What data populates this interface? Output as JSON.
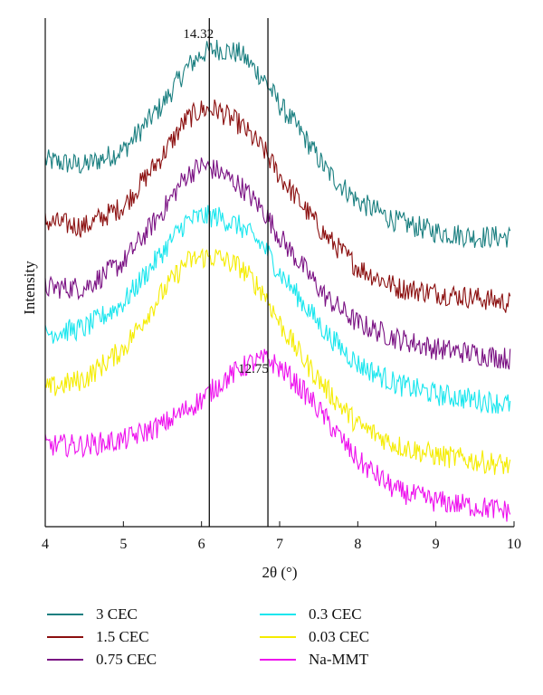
{
  "chart_data": {
    "type": "line",
    "title": "",
    "xlabel": "2θ (°)",
    "ylabel": "Intensity",
    "xlim": [
      4,
      10
    ],
    "xticks": [
      "4",
      "5",
      "6",
      "7",
      "8",
      "9",
      "10"
    ],
    "yticks_shown": false,
    "grid": false,
    "legend_placement": "below",
    "annotations": [
      {
        "text": "14.32",
        "x": 6.1,
        "vline": true
      },
      {
        "text": "12.75",
        "x": 6.85,
        "vline": true
      }
    ],
    "series": [
      {
        "name": "3 CEC",
        "color": "#1a7f80",
        "points": [
          [
            4.0,
            0.72
          ],
          [
            4.5,
            0.71
          ],
          [
            5.0,
            0.74
          ],
          [
            5.5,
            0.83
          ],
          [
            5.8,
            0.9
          ],
          [
            6.0,
            0.93
          ],
          [
            6.2,
            0.94
          ],
          [
            6.5,
            0.93
          ],
          [
            6.8,
            0.88
          ],
          [
            7.0,
            0.83
          ],
          [
            7.3,
            0.77
          ],
          [
            7.6,
            0.7
          ],
          [
            8.0,
            0.64
          ],
          [
            8.5,
            0.6
          ],
          [
            9.0,
            0.58
          ],
          [
            9.5,
            0.57
          ],
          [
            9.95,
            0.57
          ]
        ]
      },
      {
        "name": "1.5 CEC",
        "color": "#8b0f0f",
        "points": [
          [
            4.0,
            0.6
          ],
          [
            4.5,
            0.59
          ],
          [
            5.0,
            0.63
          ],
          [
            5.5,
            0.73
          ],
          [
            5.8,
            0.8
          ],
          [
            6.0,
            0.82
          ],
          [
            6.2,
            0.82
          ],
          [
            6.5,
            0.79
          ],
          [
            6.8,
            0.74
          ],
          [
            7.0,
            0.69
          ],
          [
            7.3,
            0.63
          ],
          [
            7.6,
            0.57
          ],
          [
            8.0,
            0.51
          ],
          [
            8.5,
            0.47
          ],
          [
            9.0,
            0.46
          ],
          [
            9.5,
            0.45
          ],
          [
            9.95,
            0.44
          ]
        ]
      },
      {
        "name": "0.75 CEC",
        "color": "#7a1183",
        "points": [
          [
            4.0,
            0.47
          ],
          [
            4.5,
            0.47
          ],
          [
            5.0,
            0.52
          ],
          [
            5.5,
            0.62
          ],
          [
            5.8,
            0.69
          ],
          [
            6.0,
            0.71
          ],
          [
            6.2,
            0.7
          ],
          [
            6.5,
            0.67
          ],
          [
            6.8,
            0.62
          ],
          [
            7.0,
            0.57
          ],
          [
            7.3,
            0.51
          ],
          [
            7.6,
            0.45
          ],
          [
            8.0,
            0.4
          ],
          [
            8.5,
            0.37
          ],
          [
            9.0,
            0.35
          ],
          [
            9.5,
            0.34
          ],
          [
            9.95,
            0.33
          ]
        ]
      },
      {
        "name": "0.3 CEC",
        "color": "#19e6ee",
        "points": [
          [
            4.0,
            0.38
          ],
          [
            4.5,
            0.39
          ],
          [
            5.0,
            0.44
          ],
          [
            5.5,
            0.54
          ],
          [
            5.8,
            0.6
          ],
          [
            6.0,
            0.61
          ],
          [
            6.2,
            0.61
          ],
          [
            6.5,
            0.59
          ],
          [
            6.8,
            0.55
          ],
          [
            7.0,
            0.5
          ],
          [
            7.3,
            0.44
          ],
          [
            7.6,
            0.38
          ],
          [
            8.0,
            0.32
          ],
          [
            8.5,
            0.28
          ],
          [
            9.0,
            0.26
          ],
          [
            9.5,
            0.25
          ],
          [
            9.95,
            0.24
          ]
        ]
      },
      {
        "name": "0.03 CEC",
        "color": "#f5ec00",
        "points": [
          [
            4.0,
            0.27
          ],
          [
            4.5,
            0.29
          ],
          [
            5.0,
            0.35
          ],
          [
            5.5,
            0.46
          ],
          [
            5.8,
            0.52
          ],
          [
            6.0,
            0.53
          ],
          [
            6.2,
            0.53
          ],
          [
            6.5,
            0.51
          ],
          [
            6.8,
            0.46
          ],
          [
            7.0,
            0.4
          ],
          [
            7.3,
            0.33
          ],
          [
            7.6,
            0.27
          ],
          [
            8.0,
            0.2
          ],
          [
            8.5,
            0.16
          ],
          [
            9.0,
            0.14
          ],
          [
            9.5,
            0.13
          ],
          [
            9.95,
            0.12
          ]
        ]
      },
      {
        "name": "Na-MMT",
        "color": "#ee10ee",
        "points": [
          [
            4.0,
            0.16
          ],
          [
            4.5,
            0.16
          ],
          [
            5.0,
            0.17
          ],
          [
            5.5,
            0.2
          ],
          [
            6.0,
            0.25
          ],
          [
            6.3,
            0.29
          ],
          [
            6.6,
            0.32
          ],
          [
            6.85,
            0.33
          ],
          [
            7.1,
            0.3
          ],
          [
            7.4,
            0.25
          ],
          [
            7.7,
            0.19
          ],
          [
            8.0,
            0.13
          ],
          [
            8.5,
            0.07
          ],
          [
            9.0,
            0.05
          ],
          [
            9.5,
            0.04
          ],
          [
            9.95,
            0.03
          ]
        ]
      }
    ]
  }
}
